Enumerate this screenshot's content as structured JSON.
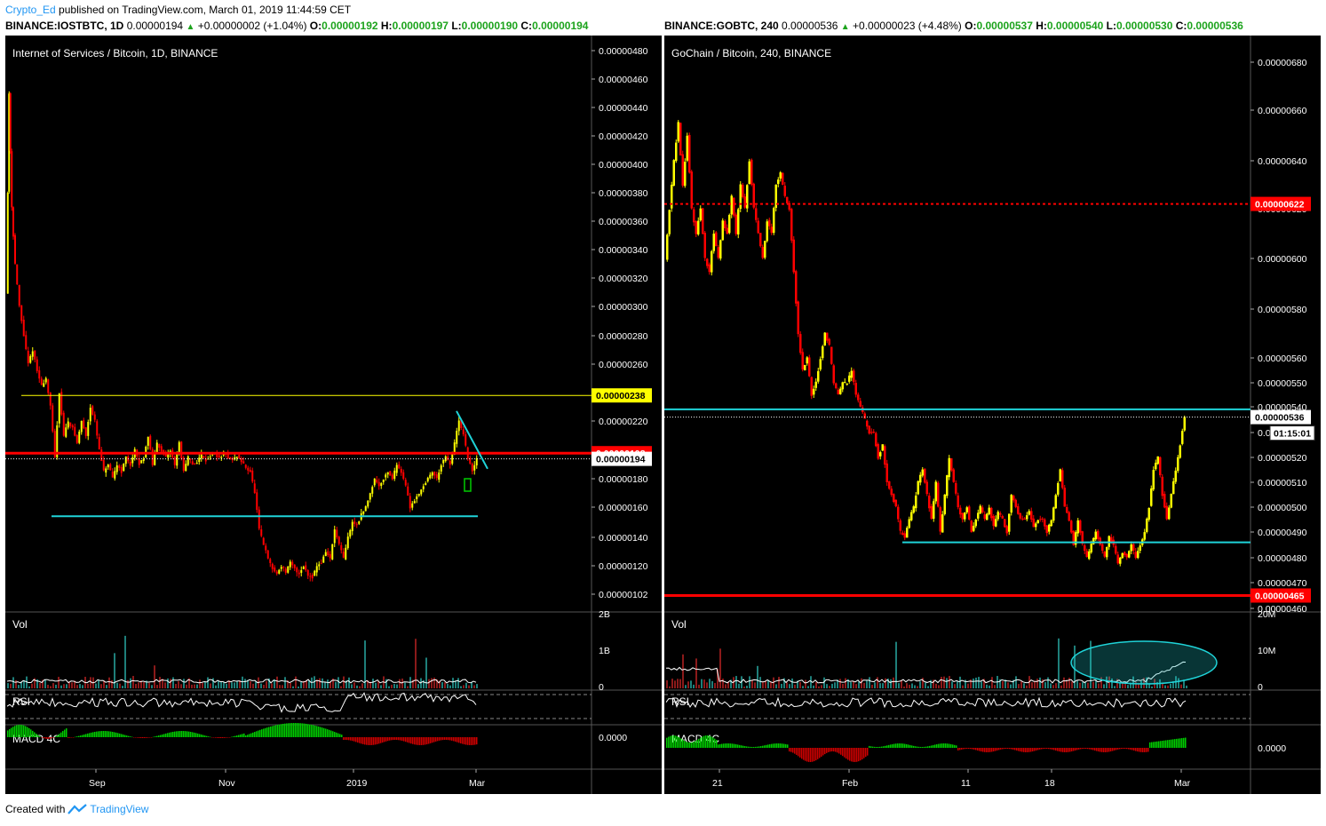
{
  "header": {
    "user": "Crypto_Ed",
    "published": "published on TradingView.com, March 01, 2019 11:44:59 CET"
  },
  "left_info": {
    "symbol": "BINANCE:IOSTBTC, 1D",
    "price": "0.00000194",
    "change": "+0.00000002 (+1.04%)",
    "o_label": "O:",
    "o": "0.00000192",
    "h_label": "H:",
    "h": "0.00000197",
    "l_label": "L:",
    "l": "0.00000190",
    "c_label": "C:",
    "c": "0.00000194"
  },
  "right_info": {
    "symbol": "BINANCE:GOBTC, 240",
    "price": "0.00000536",
    "change": "+0.00000023 (+4.48%)",
    "o_label": "O:",
    "o": "0.00000537",
    "h_label": "H:",
    "h": "0.00000540",
    "l_label": "L:",
    "l": "0.00000530",
    "c_label": "C:",
    "c": "0.00000536"
  },
  "footer": {
    "created": "Created with",
    "brand": "TradingView"
  },
  "colors": {
    "bg": "#000000",
    "up": "#ffff00",
    "down": "#ff0000",
    "cyan": "#1fd3d8",
    "yellow_line": "#ffff00",
    "red_line": "#ff0000",
    "macd_pos": "#00cc00",
    "macd_neg": "#cc0000",
    "vol_up": "#1e7f7a",
    "vol_down": "#8b1a1a"
  },
  "chart_data": [
    {
      "type": "candlestick",
      "title": "Internet of Services / Bitcoin, 1D, BINANCE",
      "y_ticks": [
        "0.00000480",
        "0.00000460",
        "0.00000440",
        "0.00000420",
        "0.00000400",
        "0.00000380",
        "0.00000360",
        "0.00000340",
        "0.00000320",
        "0.00000300",
        "0.00000280",
        "0.00000260",
        "0.00000240",
        "0.00000220",
        "0.00000200",
        "0.00000180",
        "0.00000160",
        "0.00000140",
        "0.00000120",
        "0.00000102"
      ],
      "ylim": [
        1.02e-06,
        4.8e-06
      ],
      "x_ticks": [
        "Sep",
        "Nov",
        "2019",
        "Mar"
      ],
      "price_tags": [
        {
          "label": "0.00000238",
          "kind": "yellow"
        },
        {
          "label": "0.00000198",
          "kind": "red"
        },
        {
          "label": "0.00000194",
          "kind": "white"
        }
      ],
      "horizontal_lines": [
        {
          "value": 2.38e-06,
          "color": "yellow"
        },
        {
          "value": 1.98e-06,
          "color": "red"
        },
        {
          "value": 1.54e-06,
          "color": "cyan"
        }
      ],
      "close_path": [
        [
          0,
          3.1e-06
        ],
        [
          3,
          4.5e-06
        ],
        [
          6,
          3.7e-06
        ],
        [
          10,
          3.3e-06
        ],
        [
          15,
          3e-06
        ],
        [
          20,
          2.8e-06
        ],
        [
          25,
          2.6e-06
        ],
        [
          30,
          2.7e-06
        ],
        [
          35,
          2.55e-06
        ],
        [
          40,
          2.45e-06
        ],
        [
          45,
          2.5e-06
        ],
        [
          50,
          2.3e-06
        ],
        [
          55,
          1.95e-06
        ],
        [
          60,
          2.4e-06
        ],
        [
          65,
          2.1e-06
        ],
        [
          70,
          2.2e-06
        ],
        [
          75,
          2.15e-06
        ],
        [
          80,
          2.05e-06
        ],
        [
          85,
          2.2e-06
        ],
        [
          90,
          2.1e-06
        ],
        [
          95,
          2.3e-06
        ],
        [
          100,
          2.2e-06
        ],
        [
          105,
          2e-06
        ],
        [
          110,
          1.85e-06
        ],
        [
          115,
          1.9e-06
        ],
        [
          120,
          1.8e-06
        ],
        [
          125,
          1.9e-06
        ],
        [
          130,
          1.85e-06
        ],
        [
          135,
          1.95e-06
        ],
        [
          140,
          1.9e-06
        ],
        [
          145,
          2e-06
        ],
        [
          150,
          1.9e-06
        ],
        [
          155,
          1.95e-06
        ],
        [
          160,
          2.1e-06
        ],
        [
          165,
          1.9e-06
        ],
        [
          170,
          2.05e-06
        ],
        [
          175,
          2e-06
        ],
        [
          180,
          1.95e-06
        ],
        [
          185,
          2e-06
        ],
        [
          190,
          1.9e-06
        ],
        [
          195,
          2.05e-06
        ],
        [
          200,
          1.85e-06
        ],
        [
          205,
          1.95e-06
        ],
        [
          210,
          1.9e-06
        ],
        [
          215,
          1.92e-06
        ],
        [
          220,
          1.97e-06
        ],
        [
          225,
          1.93e-06
        ],
        [
          230,
          1.96e-06
        ],
        [
          235,
          1.98e-06
        ],
        [
          240,
          1.94e-06
        ],
        [
          245,
          1.98e-06
        ],
        [
          250,
          1.95e-06
        ],
        [
          255,
          1.93e-06
        ],
        [
          260,
          1.96e-06
        ],
        [
          265,
          1.92e-06
        ],
        [
          270,
          1.88e-06
        ],
        [
          275,
          1.85e-06
        ],
        [
          280,
          1.7e-06
        ],
        [
          285,
          1.45e-06
        ],
        [
          290,
          1.35e-06
        ],
        [
          295,
          1.25e-06
        ],
        [
          300,
          1.18e-06
        ],
        [
          305,
          1.15e-06
        ],
        [
          310,
          1.2e-06
        ],
        [
          315,
          1.16e-06
        ],
        [
          320,
          1.22e-06
        ],
        [
          325,
          1.18e-06
        ],
        [
          330,
          1.15e-06
        ],
        [
          335,
          1.2e-06
        ],
        [
          340,
          1.14e-06
        ],
        [
          345,
          1.13e-06
        ],
        [
          350,
          1.2e-06
        ],
        [
          355,
          1.22e-06
        ],
        [
          360,
          1.3e-06
        ],
        [
          365,
          1.25e-06
        ],
        [
          370,
          1.45e-06
        ],
        [
          375,
          1.35e-06
        ],
        [
          380,
          1.25e-06
        ],
        [
          385,
          1.4e-06
        ],
        [
          390,
          1.5e-06
        ],
        [
          395,
          1.48e-06
        ],
        [
          400,
          1.55e-06
        ],
        [
          405,
          1.6e-06
        ],
        [
          410,
          1.7e-06
        ],
        [
          415,
          1.8e-06
        ],
        [
          420,
          1.75e-06
        ],
        [
          425,
          1.8e-06
        ],
        [
          430,
          1.85e-06
        ],
        [
          435,
          1.8e-06
        ],
        [
          440,
          1.9e-06
        ],
        [
          445,
          1.85e-06
        ],
        [
          450,
          1.75e-06
        ],
        [
          455,
          1.6e-06
        ],
        [
          460,
          1.65e-06
        ],
        [
          465,
          1.7e-06
        ],
        [
          470,
          1.75e-06
        ],
        [
          475,
          1.8e-06
        ],
        [
          480,
          1.85e-06
        ],
        [
          485,
          1.8e-06
        ],
        [
          490,
          1.9e-06
        ],
        [
          495,
          1.95e-06
        ],
        [
          500,
          1.9e-06
        ],
        [
          505,
          2.05e-06
        ],
        [
          510,
          2.2e-06
        ],
        [
          515,
          2.1e-06
        ],
        [
          520,
          1.95e-06
        ],
        [
          525,
          1.85e-06
        ],
        [
          530,
          1.94e-06
        ]
      ],
      "panes": [
        {
          "label": "Vol",
          "ticks": [
            "2B",
            "1B",
            "0"
          ]
        },
        {
          "label": "RSI"
        },
        {
          "label": "MACD 4C",
          "ticks": [
            "0.0000"
          ]
        }
      ]
    },
    {
      "type": "candlestick",
      "title": "GoChain / Bitcoin, 240, BINANCE",
      "y_ticks": [
        "0.00000680",
        "0.00000660",
        "0.00000640",
        "0.00000620",
        "0.00000600",
        "0.00000580",
        "0.00000560",
        "0.00000550",
        "0.00000540",
        "0.00000530",
        "0.00000520",
        "0.00000510",
        "0.00000500",
        "0.00000490",
        "0.00000480",
        "0.00000470",
        "0.00000460"
      ],
      "ylim": [
        4.6e-06,
        6.8e-06
      ],
      "x_ticks": [
        "21",
        "Feb",
        "11",
        "18",
        "Mar"
      ],
      "price_tags": [
        {
          "label": "0.00000622",
          "kind": "red"
        },
        {
          "label": "0.00000536",
          "kind": "white"
        },
        {
          "label": "01:15:01",
          "kind": "countdown"
        },
        {
          "label": "0.00000465",
          "kind": "red"
        }
      ],
      "horizontal_lines": [
        {
          "value": 6.22e-06,
          "color": "red",
          "dashed": true
        },
        {
          "value": 5.39e-06,
          "color": "cyan"
        },
        {
          "value": 4.86e-06,
          "color": "cyan"
        },
        {
          "value": 4.65e-06,
          "color": "red"
        }
      ],
      "close_path": [
        [
          0,
          6e-06
        ],
        [
          5,
          6.2e-06
        ],
        [
          10,
          6.4e-06
        ],
        [
          15,
          6.55e-06
        ],
        [
          20,
          6.3e-06
        ],
        [
          25,
          6.5e-06
        ],
        [
          30,
          6.2e-06
        ],
        [
          35,
          6.1e-06
        ],
        [
          40,
          6.2e-06
        ],
        [
          45,
          6e-06
        ],
        [
          50,
          5.95e-06
        ],
        [
          55,
          6.1e-06
        ],
        [
          60,
          6e-06
        ],
        [
          65,
          6.15e-06
        ],
        [
          70,
          6.1e-06
        ],
        [
          75,
          6.25e-06
        ],
        [
          80,
          6.1e-06
        ],
        [
          85,
          6.3e-06
        ],
        [
          90,
          6.2e-06
        ],
        [
          95,
          6.4e-06
        ],
        [
          100,
          6.2e-06
        ],
        [
          105,
          6.1e-06
        ],
        [
          110,
          6e-06
        ],
        [
          115,
          6.15e-06
        ],
        [
          120,
          6.1e-06
        ],
        [
          125,
          6.3e-06
        ],
        [
          130,
          6.35e-06
        ],
        [
          135,
          6.25e-06
        ],
        [
          140,
          6.2e-06
        ],
        [
          145,
          5.95e-06
        ],
        [
          150,
          5.7e-06
        ],
        [
          155,
          5.55e-06
        ],
        [
          160,
          5.6e-06
        ],
        [
          165,
          5.45e-06
        ],
        [
          170,
          5.5e-06
        ],
        [
          175,
          5.6e-06
        ],
        [
          180,
          5.7e-06
        ],
        [
          185,
          5.65e-06
        ],
        [
          190,
          5.5e-06
        ],
        [
          195,
          5.45e-06
        ],
        [
          200,
          5.5e-06
        ],
        [
          205,
          5.5e-06
        ],
        [
          210,
          5.55e-06
        ],
        [
          215,
          5.45e-06
        ],
        [
          220,
          5.4e-06
        ],
        [
          225,
          5.35e-06
        ],
        [
          230,
          5.3e-06
        ],
        [
          235,
          5.3e-06
        ],
        [
          240,
          5.2e-06
        ],
        [
          245,
          5.25e-06
        ],
        [
          250,
          5.1e-06
        ],
        [
          255,
          5.05e-06
        ],
        [
          260,
          5e-06
        ],
        [
          265,
          4.9e-06
        ],
        [
          270,
          4.88e-06
        ],
        [
          275,
          4.95e-06
        ],
        [
          280,
          5e-06
        ],
        [
          285,
          5.1e-06
        ],
        [
          290,
          5.15e-06
        ],
        [
          295,
          5.05e-06
        ],
        [
          300,
          4.95e-06
        ],
        [
          305,
          5.1e-06
        ],
        [
          310,
          4.9e-06
        ],
        [
          315,
          5.05e-06
        ],
        [
          320,
          5.2e-06
        ],
        [
          325,
          5.1e-06
        ],
        [
          330,
          5e-06
        ],
        [
          335,
          4.95e-06
        ],
        [
          340,
          5e-06
        ],
        [
          345,
          4.9e-06
        ],
        [
          350,
          4.95e-06
        ],
        [
          355,
          5e-06
        ],
        [
          360,
          4.95e-06
        ],
        [
          365,
          5e-06
        ],
        [
          370,
          4.92e-06
        ],
        [
          375,
          4.98e-06
        ],
        [
          380,
          4.95e-06
        ],
        [
          385,
          4.9e-06
        ],
        [
          390,
          5.05e-06
        ],
        [
          395,
          5e-06
        ],
        [
          400,
          4.95e-06
        ],
        [
          405,
          4.95e-06
        ],
        [
          410,
          4.98e-06
        ],
        [
          415,
          4.92e-06
        ],
        [
          420,
          4.95e-06
        ],
        [
          425,
          4.95e-06
        ],
        [
          430,
          4.9e-06
        ],
        [
          435,
          4.95e-06
        ],
        [
          440,
          5.05e-06
        ],
        [
          445,
          5.15e-06
        ],
        [
          450,
          5e-06
        ],
        [
          455,
          4.95e-06
        ],
        [
          460,
          4.85e-06
        ],
        [
          465,
          4.95e-06
        ],
        [
          470,
          4.85e-06
        ],
        [
          475,
          4.8e-06
        ],
        [
          480,
          4.85e-06
        ],
        [
          485,
          4.9e-06
        ],
        [
          490,
          4.85e-06
        ],
        [
          495,
          4.8e-06
        ],
        [
          500,
          4.88e-06
        ],
        [
          505,
          4.85e-06
        ],
        [
          510,
          4.78e-06
        ],
        [
          515,
          4.82e-06
        ],
        [
          520,
          4.8e-06
        ],
        [
          525,
          4.85e-06
        ],
        [
          530,
          4.8e-06
        ],
        [
          535,
          4.85e-06
        ],
        [
          540,
          4.9e-06
        ],
        [
          545,
          5e-06
        ],
        [
          550,
          5.15e-06
        ],
        [
          555,
          5.2e-06
        ],
        [
          560,
          5.05e-06
        ],
        [
          565,
          4.95e-06
        ],
        [
          570,
          5.05e-06
        ],
        [
          575,
          5.15e-06
        ],
        [
          580,
          5.25e-06
        ],
        [
          585,
          5.36e-06
        ]
      ],
      "panes": [
        {
          "label": "Vol",
          "ticks": [
            "20M",
            "10M",
            "0"
          ]
        },
        {
          "label": "RSI"
        },
        {
          "label": "MACD 4C",
          "ticks": [
            "0.0000"
          ]
        }
      ]
    }
  ]
}
